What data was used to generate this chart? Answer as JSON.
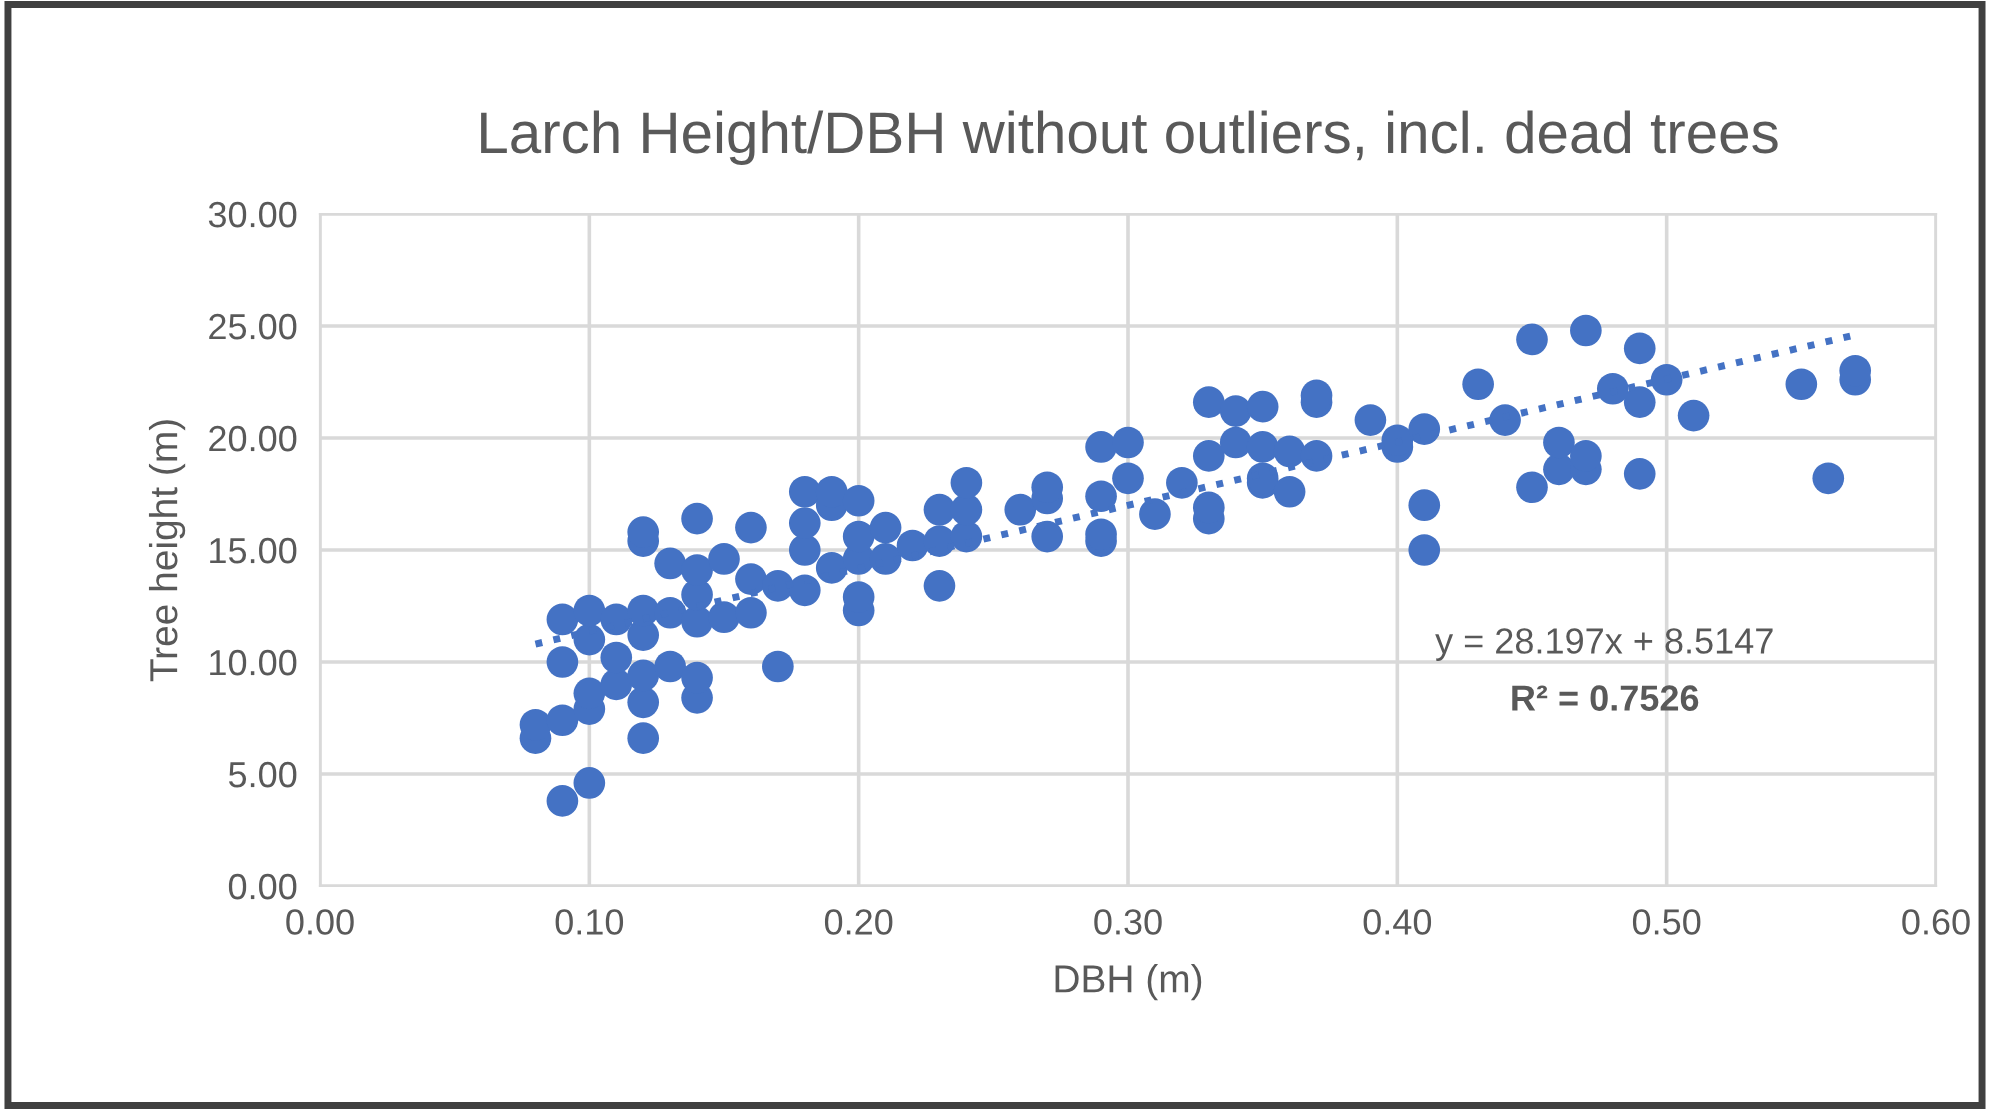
{
  "chart_data": {
    "type": "scatter",
    "title": "Larch Height/DBH without outliers, incl. dead trees",
    "xlabel": "DBH (m)",
    "ylabel": "Tree height (m)",
    "xlim": [
      0,
      0.6
    ],
    "ylim": [
      0,
      30
    ],
    "xticks": [
      {
        "value": 0,
        "label": "0.00"
      },
      {
        "value": 0.1,
        "label": "0.10"
      },
      {
        "value": 0.2,
        "label": "0.20"
      },
      {
        "value": 0.3,
        "label": "0.30"
      },
      {
        "value": 0.4,
        "label": "0.40"
      },
      {
        "value": 0.5,
        "label": "0.50"
      },
      {
        "value": 0.6,
        "label": "0.60"
      }
    ],
    "yticks": [
      {
        "value": 0,
        "label": "0.00"
      },
      {
        "value": 5,
        "label": "5.00"
      },
      {
        "value": 10,
        "label": "10.00"
      },
      {
        "value": 15,
        "label": "15.00"
      },
      {
        "value": 20,
        "label": "20.00"
      },
      {
        "value": 25,
        "label": "25.00"
      },
      {
        "value": 30,
        "label": "30.00"
      }
    ],
    "grid": true,
    "legend": false,
    "marker": "circle",
    "annotations": [
      "y = 28.197x + 8.5147",
      "R² = 0.7526"
    ],
    "series": [
      {
        "color": "#4472c4",
        "x": [
          0.08,
          0.08,
          0.09,
          0.09,
          0.09,
          0.09,
          0.1,
          0.1,
          0.1,
          0.1,
          0.1,
          0.11,
          0.11,
          0.11,
          0.12,
          0.12,
          0.12,
          0.12,
          0.12,
          0.12,
          0.12,
          0.13,
          0.13,
          0.13,
          0.14,
          0.14,
          0.14,
          0.14,
          0.14,
          0.14,
          0.15,
          0.15,
          0.16,
          0.16,
          0.16,
          0.17,
          0.17,
          0.18,
          0.18,
          0.18,
          0.18,
          0.19,
          0.19,
          0.19,
          0.2,
          0.2,
          0.2,
          0.2,
          0.2,
          0.21,
          0.21,
          0.22,
          0.23,
          0.23,
          0.23,
          0.24,
          0.24,
          0.24,
          0.26,
          0.27,
          0.27,
          0.27,
          0.29,
          0.29,
          0.29,
          0.29,
          0.3,
          0.3,
          0.31,
          0.32,
          0.33,
          0.33,
          0.33,
          0.33,
          0.34,
          0.34,
          0.35,
          0.35,
          0.35,
          0.35,
          0.36,
          0.36,
          0.37,
          0.37,
          0.37,
          0.39,
          0.4,
          0.4,
          0.41,
          0.41,
          0.41,
          0.43,
          0.44,
          0.45,
          0.45,
          0.46,
          0.46,
          0.47,
          0.47,
          0.47,
          0.48,
          0.49,
          0.49,
          0.49,
          0.5,
          0.51,
          0.55,
          0.56,
          0.57,
          0.57
        ],
        "values": [
          6.6,
          7.2,
          3.8,
          7.4,
          10.0,
          11.9,
          4.6,
          7.9,
          8.6,
          11.0,
          12.3,
          9.0,
          10.2,
          11.9,
          6.6,
          8.2,
          9.4,
          11.2,
          12.3,
          15.4,
          15.8,
          9.8,
          12.2,
          14.4,
          8.4,
          9.3,
          11.8,
          13.0,
          14.1,
          16.4,
          12.0,
          14.6,
          12.2,
          13.7,
          16.0,
          9.8,
          13.4,
          13.2,
          15.0,
          16.2,
          17.6,
          14.2,
          17.0,
          17.6,
          12.3,
          12.9,
          14.6,
          15.6,
          17.2,
          14.6,
          16.0,
          15.2,
          13.4,
          15.4,
          16.8,
          15.6,
          16.8,
          18.0,
          16.8,
          15.6,
          17.3,
          17.8,
          15.4,
          15.7,
          17.4,
          19.6,
          18.2,
          19.8,
          16.6,
          18.0,
          16.4,
          16.9,
          19.2,
          21.6,
          19.8,
          21.2,
          18.0,
          18.2,
          19.6,
          21.4,
          17.6,
          19.4,
          19.2,
          21.6,
          21.9,
          20.8,
          19.6,
          19.9,
          15.0,
          17.0,
          20.4,
          22.4,
          20.8,
          17.8,
          24.4,
          18.6,
          19.8,
          18.6,
          19.2,
          24.8,
          22.2,
          18.4,
          21.6,
          24.0,
          22.6,
          21.0,
          22.4,
          18.2,
          22.6,
          23.0
        ]
      },
      {
        "type": "line",
        "color": "#4472c4",
        "line_style": "dotted",
        "marker": "none",
        "x": [
          0.08,
          0.57
        ],
        "values": [
          10.8,
          24.6
        ]
      }
    ]
  }
}
